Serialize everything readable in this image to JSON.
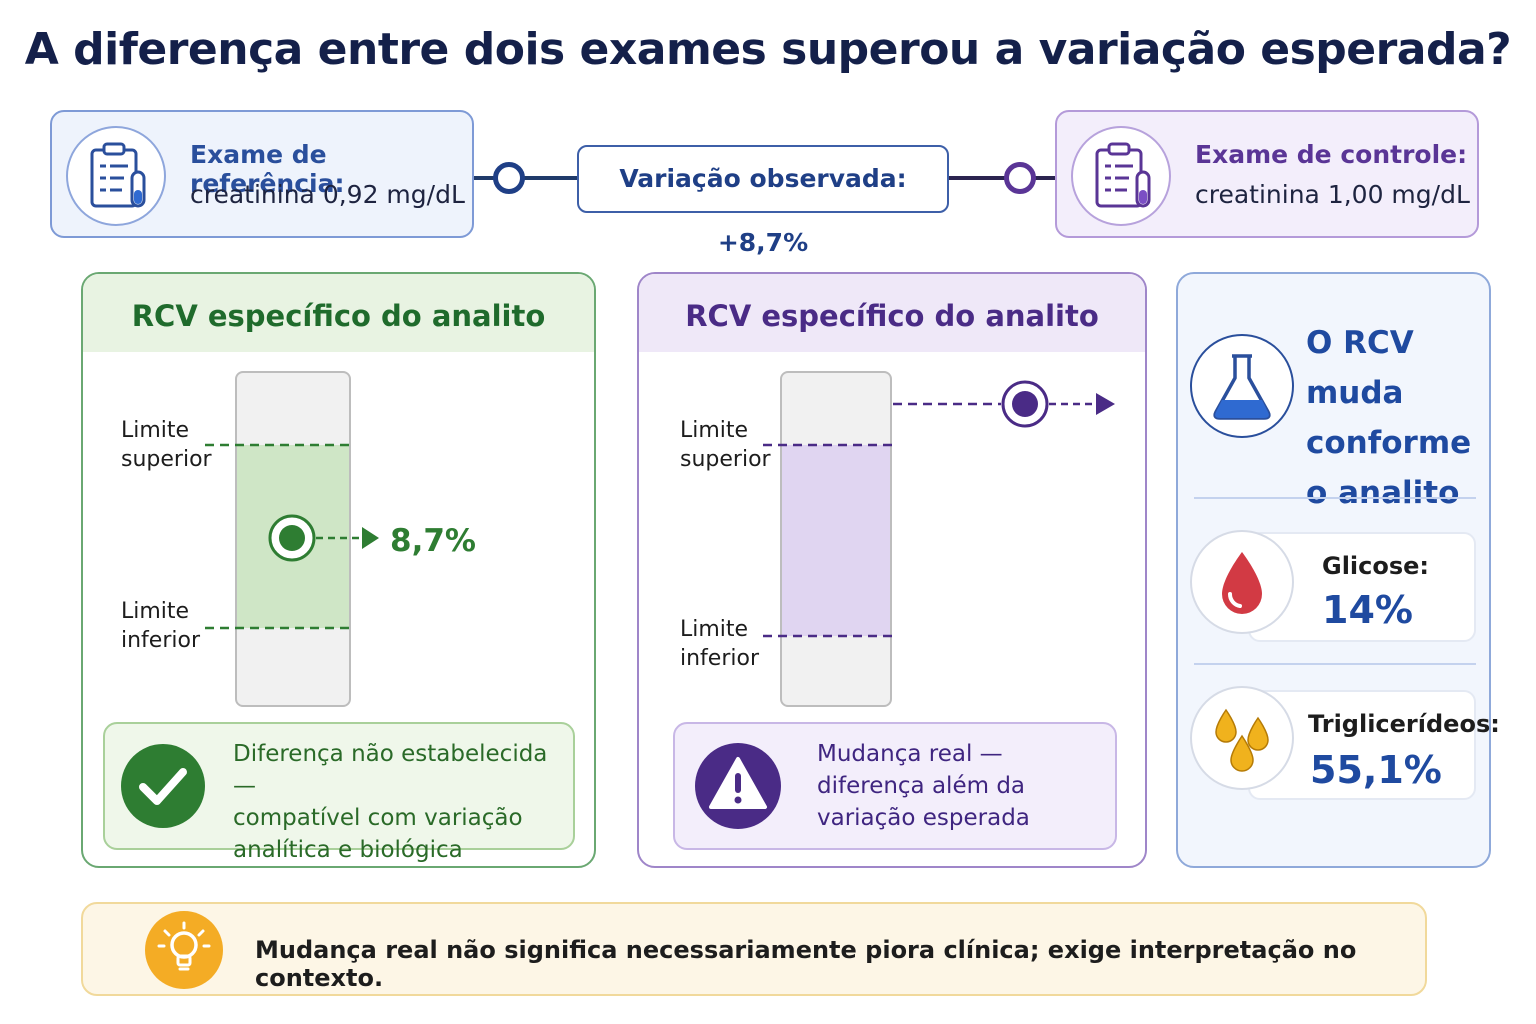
{
  "title": "A diferença entre dois exames superou a variação esperada?",
  "reference": {
    "label": "Exame de referência:",
    "value": "creatinina 0,92 mg/dL"
  },
  "control": {
    "label": "Exame de controle:",
    "value": "creatinina 1,00 mg/dL"
  },
  "observed": {
    "label": "Variação observada: +8,7%",
    "value_percent": 8.7
  },
  "panel_left": {
    "title": "RCV específico do analito",
    "upper_label": [
      "Limite",
      "superior"
    ],
    "lower_label": [
      "Limite",
      "inferior"
    ],
    "point_label": "8,7%",
    "status": [
      "Diferença não estabelecida —",
      "compatível com variação",
      "analítica e biológica esperada"
    ],
    "color": "#2e7d32"
  },
  "panel_middle": {
    "title": "RCV específico do analito",
    "upper_label": [
      "Limite",
      "superior"
    ],
    "lower_label": [
      "Limite",
      "inferior"
    ],
    "status": [
      "Mudança real —",
      "diferença além da",
      "variação esperada"
    ],
    "color": "#4a2b86"
  },
  "side": {
    "title": [
      "O RCV muda",
      "conforme",
      "o analito"
    ],
    "items": [
      {
        "label": "Glicose:",
        "value": "14%",
        "icon": "blood-drop-icon"
      },
      {
        "label": "Triglicerídeos:",
        "value": "55,1%",
        "icon": "oil-drops-icon"
      }
    ]
  },
  "footer": {
    "text": "Mudança real não significa necessariamente piora clínica; exige interpretação no contexto.",
    "icon": "lightbulb-icon"
  }
}
